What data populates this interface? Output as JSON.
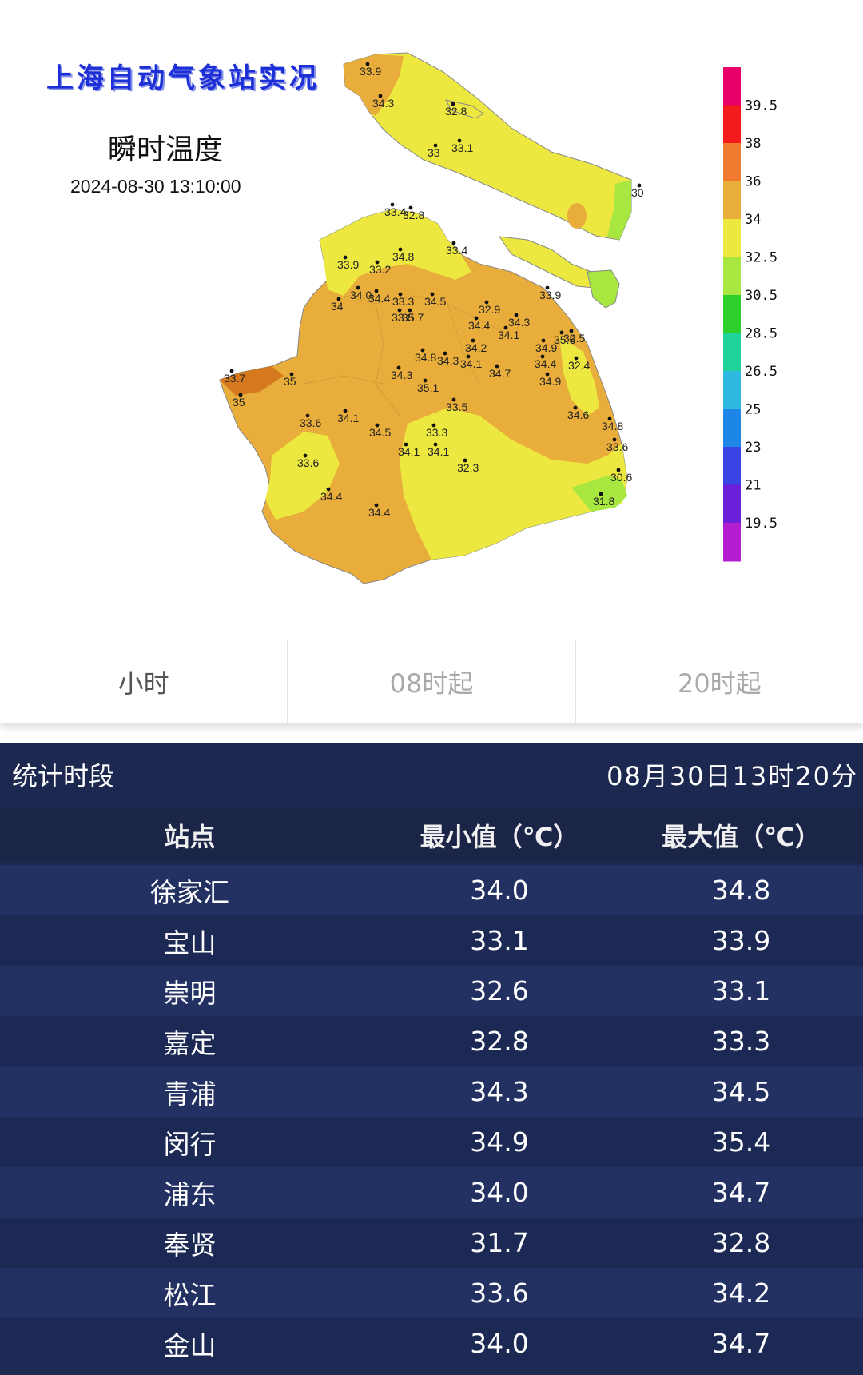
{
  "map": {
    "title": "上海自动气象站实况",
    "subtitle": "瞬时温度",
    "timestamp": "2024-08-30 13:10:00",
    "legend": [
      "39.5",
      "38",
      "36",
      "34",
      "32.5",
      "30.5",
      "28.5",
      "26.5",
      "25",
      "23",
      "21",
      "19.5"
    ],
    "legend_colors": [
      "#e8006a",
      "#f21a1a",
      "#f07a2e",
      "#e8ad3a",
      "#ece840",
      "#a8e640",
      "#2ccf2c",
      "#20d39a",
      "#2fb9e0",
      "#1e86e6",
      "#3a45e6",
      "#6a1fd8",
      "#b31fd0"
    ],
    "stations": [
      "33.9",
      "34.3",
      "32.8",
      "33",
      "33.1",
      "30",
      "33.4",
      "32.8",
      "33.9",
      "33.2",
      "34.8",
      "33.4",
      "34.0",
      "34.4",
      "33.3",
      "34.5",
      "34",
      "33.8",
      "35.7",
      "32.9",
      "33.9",
      "34.4",
      "34.3",
      "34.1",
      "35.6",
      "34.9",
      "32.5",
      "34.2",
      "34.4",
      "34.8",
      "34.3",
      "34.1",
      "34.7",
      "32.4",
      "33.7",
      "35",
      "34.3",
      "35.1",
      "34.9",
      "35",
      "33.5",
      "34.6",
      "33.6",
      "34.1",
      "34.5",
      "33.3",
      "34.8",
      "33.6",
      "34.1",
      "34.1",
      "33.6",
      "32.3",
      "30.6",
      "34.4",
      "31.8",
      "34.4"
    ]
  },
  "tabs": [
    {
      "label": "小时",
      "active": true
    },
    {
      "label": "08时起",
      "active": false
    },
    {
      "label": "20时起",
      "active": false
    }
  ],
  "stats": {
    "period_label": "统计时段",
    "period_value": "08月30日13时20分",
    "columns": [
      "站点",
      "最小值（℃）",
      "最大值（℃）"
    ],
    "rows": [
      {
        "station": "徐家汇",
        "min": "34.0",
        "max": "34.8"
      },
      {
        "station": "宝山",
        "min": "33.1",
        "max": "33.9"
      },
      {
        "station": "崇明",
        "min": "32.6",
        "max": "33.1"
      },
      {
        "station": "嘉定",
        "min": "32.8",
        "max": "33.3"
      },
      {
        "station": "青浦",
        "min": "34.3",
        "max": "34.5"
      },
      {
        "station": "闵行",
        "min": "34.9",
        "max": "35.4"
      },
      {
        "station": "浦东",
        "min": "34.0",
        "max": "34.7"
      },
      {
        "station": "奉贤",
        "min": "31.7",
        "max": "32.8"
      },
      {
        "station": "松江",
        "min": "33.6",
        "max": "34.2"
      },
      {
        "station": "金山",
        "min": "34.0",
        "max": "34.7"
      }
    ]
  }
}
